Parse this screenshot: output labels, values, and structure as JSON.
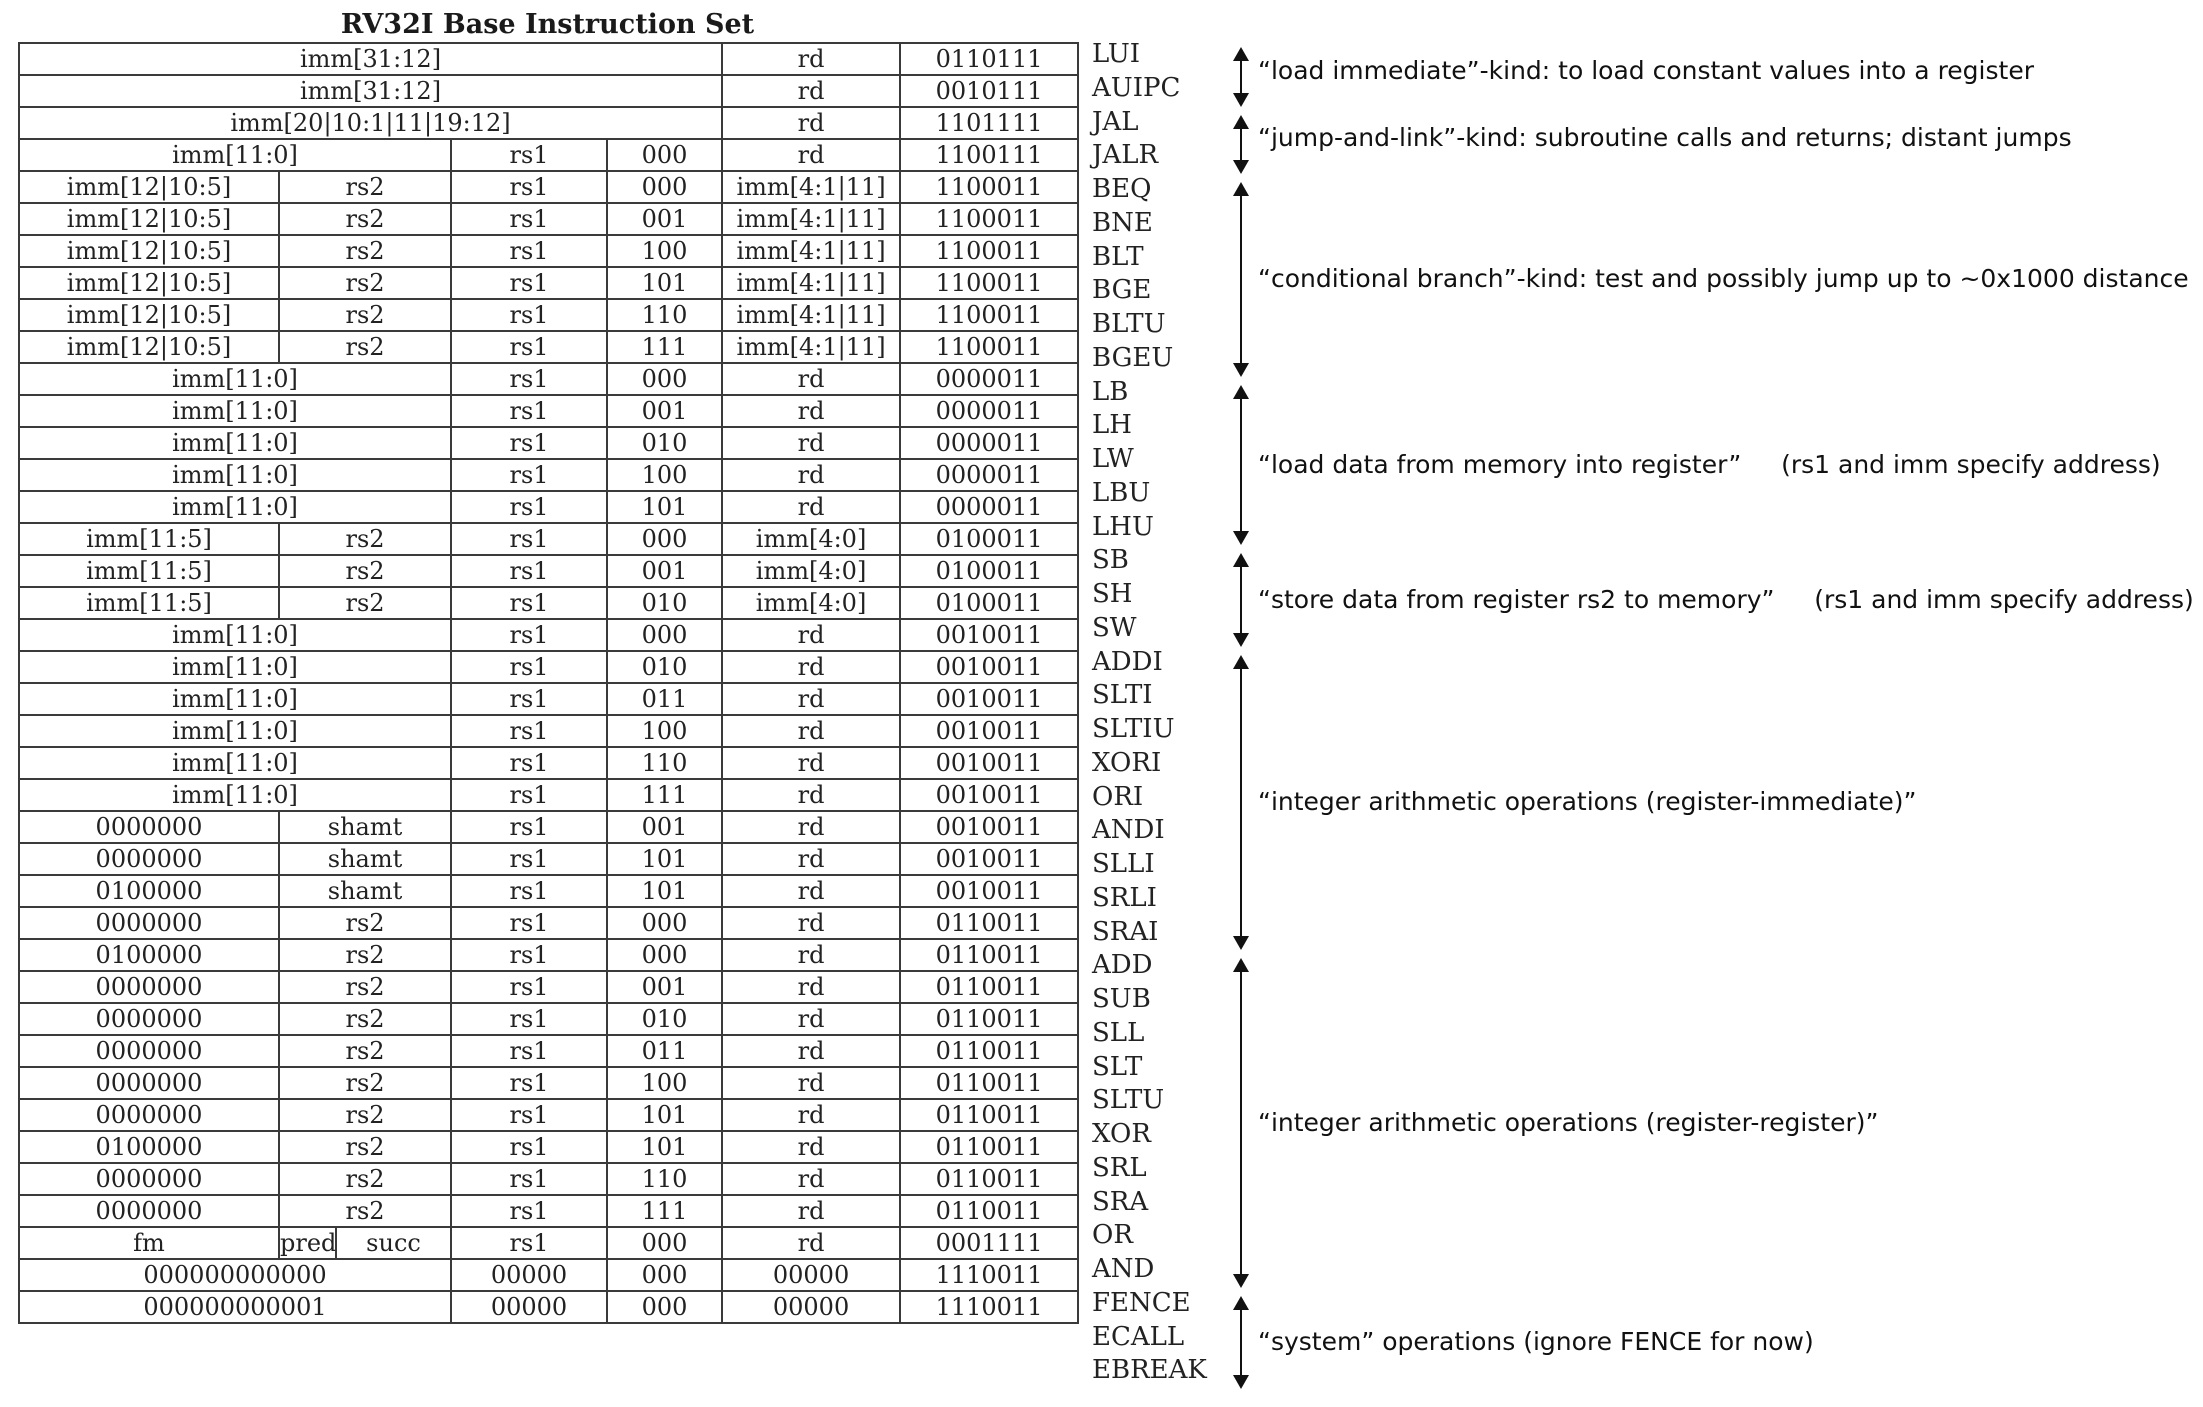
{
  "title": "RV32I Base Instruction Set",
  "rows": [
    {
      "m": "LUI",
      "c": [
        [
          "imm[31:12]",
          5
        ],
        [
          "rd",
          1
        ],
        [
          "0110111",
          1
        ]
      ]
    },
    {
      "m": "AUIPC",
      "c": [
        [
          "imm[31:12]",
          5
        ],
        [
          "rd",
          1
        ],
        [
          "0010111",
          1
        ]
      ]
    },
    {
      "m": "JAL",
      "c": [
        [
          "imm[20|10:1|11|19:12]",
          5
        ],
        [
          "rd",
          1
        ],
        [
          "1101111",
          1
        ]
      ]
    },
    {
      "m": "JALR",
      "c": [
        [
          "imm[11:0]",
          3
        ],
        [
          "rs1",
          1
        ],
        [
          "000",
          1
        ],
        [
          "rd",
          1
        ],
        [
          "1100111",
          1
        ]
      ]
    },
    {
      "m": "BEQ",
      "c": [
        [
          "imm[12|10:5]",
          1
        ],
        [
          "rs2",
          2
        ],
        [
          "rs1",
          1
        ],
        [
          "000",
          1
        ],
        [
          "imm[4:1|11]",
          1
        ],
        [
          "1100011",
          1
        ]
      ]
    },
    {
      "m": "BNE",
      "c": [
        [
          "imm[12|10:5]",
          1
        ],
        [
          "rs2",
          2
        ],
        [
          "rs1",
          1
        ],
        [
          "001",
          1
        ],
        [
          "imm[4:1|11]",
          1
        ],
        [
          "1100011",
          1
        ]
      ]
    },
    {
      "m": "BLT",
      "c": [
        [
          "imm[12|10:5]",
          1
        ],
        [
          "rs2",
          2
        ],
        [
          "rs1",
          1
        ],
        [
          "100",
          1
        ],
        [
          "imm[4:1|11]",
          1
        ],
        [
          "1100011",
          1
        ]
      ]
    },
    {
      "m": "BGE",
      "c": [
        [
          "imm[12|10:5]",
          1
        ],
        [
          "rs2",
          2
        ],
        [
          "rs1",
          1
        ],
        [
          "101",
          1
        ],
        [
          "imm[4:1|11]",
          1
        ],
        [
          "1100011",
          1
        ]
      ]
    },
    {
      "m": "BLTU",
      "c": [
        [
          "imm[12|10:5]",
          1
        ],
        [
          "rs2",
          2
        ],
        [
          "rs1",
          1
        ],
        [
          "110",
          1
        ],
        [
          "imm[4:1|11]",
          1
        ],
        [
          "1100011",
          1
        ]
      ]
    },
    {
      "m": "BGEU",
      "c": [
        [
          "imm[12|10:5]",
          1
        ],
        [
          "rs2",
          2
        ],
        [
          "rs1",
          1
        ],
        [
          "111",
          1
        ],
        [
          "imm[4:1|11]",
          1
        ],
        [
          "1100011",
          1
        ]
      ]
    },
    {
      "m": "LB",
      "c": [
        [
          "imm[11:0]",
          3
        ],
        [
          "rs1",
          1
        ],
        [
          "000",
          1
        ],
        [
          "rd",
          1
        ],
        [
          "0000011",
          1
        ]
      ]
    },
    {
      "m": "LH",
      "c": [
        [
          "imm[11:0]",
          3
        ],
        [
          "rs1",
          1
        ],
        [
          "001",
          1
        ],
        [
          "rd",
          1
        ],
        [
          "0000011",
          1
        ]
      ]
    },
    {
      "m": "LW",
      "c": [
        [
          "imm[11:0]",
          3
        ],
        [
          "rs1",
          1
        ],
        [
          "010",
          1
        ],
        [
          "rd",
          1
        ],
        [
          "0000011",
          1
        ]
      ]
    },
    {
      "m": "LBU",
      "c": [
        [
          "imm[11:0]",
          3
        ],
        [
          "rs1",
          1
        ],
        [
          "100",
          1
        ],
        [
          "rd",
          1
        ],
        [
          "0000011",
          1
        ]
      ]
    },
    {
      "m": "LHU",
      "c": [
        [
          "imm[11:0]",
          3
        ],
        [
          "rs1",
          1
        ],
        [
          "101",
          1
        ],
        [
          "rd",
          1
        ],
        [
          "0000011",
          1
        ]
      ]
    },
    {
      "m": "SB",
      "c": [
        [
          "imm[11:5]",
          1
        ],
        [
          "rs2",
          2
        ],
        [
          "rs1",
          1
        ],
        [
          "000",
          1
        ],
        [
          "imm[4:0]",
          1
        ],
        [
          "0100011",
          1
        ]
      ]
    },
    {
      "m": "SH",
      "c": [
        [
          "imm[11:5]",
          1
        ],
        [
          "rs2",
          2
        ],
        [
          "rs1",
          1
        ],
        [
          "001",
          1
        ],
        [
          "imm[4:0]",
          1
        ],
        [
          "0100011",
          1
        ]
      ]
    },
    {
      "m": "SW",
      "c": [
        [
          "imm[11:5]",
          1
        ],
        [
          "rs2",
          2
        ],
        [
          "rs1",
          1
        ],
        [
          "010",
          1
        ],
        [
          "imm[4:0]",
          1
        ],
        [
          "0100011",
          1
        ]
      ]
    },
    {
      "m": "ADDI",
      "c": [
        [
          "imm[11:0]",
          3
        ],
        [
          "rs1",
          1
        ],
        [
          "000",
          1
        ],
        [
          "rd",
          1
        ],
        [
          "0010011",
          1
        ]
      ]
    },
    {
      "m": "SLTI",
      "c": [
        [
          "imm[11:0]",
          3
        ],
        [
          "rs1",
          1
        ],
        [
          "010",
          1
        ],
        [
          "rd",
          1
        ],
        [
          "0010011",
          1
        ]
      ]
    },
    {
      "m": "SLTIU",
      "c": [
        [
          "imm[11:0]",
          3
        ],
        [
          "rs1",
          1
        ],
        [
          "011",
          1
        ],
        [
          "rd",
          1
        ],
        [
          "0010011",
          1
        ]
      ]
    },
    {
      "m": "XORI",
      "c": [
        [
          "imm[11:0]",
          3
        ],
        [
          "rs1",
          1
        ],
        [
          "100",
          1
        ],
        [
          "rd",
          1
        ],
        [
          "0010011",
          1
        ]
      ]
    },
    {
      "m": "ORI",
      "c": [
        [
          "imm[11:0]",
          3
        ],
        [
          "rs1",
          1
        ],
        [
          "110",
          1
        ],
        [
          "rd",
          1
        ],
        [
          "0010011",
          1
        ]
      ]
    },
    {
      "m": "ANDI",
      "c": [
        [
          "imm[11:0]",
          3
        ],
        [
          "rs1",
          1
        ],
        [
          "111",
          1
        ],
        [
          "rd",
          1
        ],
        [
          "0010011",
          1
        ]
      ]
    },
    {
      "m": "SLLI",
      "c": [
        [
          "0000000",
          1
        ],
        [
          "shamt",
          2
        ],
        [
          "rs1",
          1
        ],
        [
          "001",
          1
        ],
        [
          "rd",
          1
        ],
        [
          "0010011",
          1
        ]
      ]
    },
    {
      "m": "SRLI",
      "c": [
        [
          "0000000",
          1
        ],
        [
          "shamt",
          2
        ],
        [
          "rs1",
          1
        ],
        [
          "101",
          1
        ],
        [
          "rd",
          1
        ],
        [
          "0010011",
          1
        ]
      ]
    },
    {
      "m": "SRAI",
      "c": [
        [
          "0100000",
          1
        ],
        [
          "shamt",
          2
        ],
        [
          "rs1",
          1
        ],
        [
          "101",
          1
        ],
        [
          "rd",
          1
        ],
        [
          "0010011",
          1
        ]
      ]
    },
    {
      "m": "ADD",
      "c": [
        [
          "0000000",
          1
        ],
        [
          "rs2",
          2
        ],
        [
          "rs1",
          1
        ],
        [
          "000",
          1
        ],
        [
          "rd",
          1
        ],
        [
          "0110011",
          1
        ]
      ]
    },
    {
      "m": "SUB",
      "c": [
        [
          "0100000",
          1
        ],
        [
          "rs2",
          2
        ],
        [
          "rs1",
          1
        ],
        [
          "000",
          1
        ],
        [
          "rd",
          1
        ],
        [
          "0110011",
          1
        ]
      ]
    },
    {
      "m": "SLL",
      "c": [
        [
          "0000000",
          1
        ],
        [
          "rs2",
          2
        ],
        [
          "rs1",
          1
        ],
        [
          "001",
          1
        ],
        [
          "rd",
          1
        ],
        [
          "0110011",
          1
        ]
      ]
    },
    {
      "m": "SLT",
      "c": [
        [
          "0000000",
          1
        ],
        [
          "rs2",
          2
        ],
        [
          "rs1",
          1
        ],
        [
          "010",
          1
        ],
        [
          "rd",
          1
        ],
        [
          "0110011",
          1
        ]
      ]
    },
    {
      "m": "SLTU",
      "c": [
        [
          "0000000",
          1
        ],
        [
          "rs2",
          2
        ],
        [
          "rs1",
          1
        ],
        [
          "011",
          1
        ],
        [
          "rd",
          1
        ],
        [
          "0110011",
          1
        ]
      ]
    },
    {
      "m": "XOR",
      "c": [
        [
          "0000000",
          1
        ],
        [
          "rs2",
          2
        ],
        [
          "rs1",
          1
        ],
        [
          "100",
          1
        ],
        [
          "rd",
          1
        ],
        [
          "0110011",
          1
        ]
      ]
    },
    {
      "m": "SRL",
      "c": [
        [
          "0000000",
          1
        ],
        [
          "rs2",
          2
        ],
        [
          "rs1",
          1
        ],
        [
          "101",
          1
        ],
        [
          "rd",
          1
        ],
        [
          "0110011",
          1
        ]
      ]
    },
    {
      "m": "SRA",
      "c": [
        [
          "0100000",
          1
        ],
        [
          "rs2",
          2
        ],
        [
          "rs1",
          1
        ],
        [
          "101",
          1
        ],
        [
          "rd",
          1
        ],
        [
          "0110011",
          1
        ]
      ]
    },
    {
      "m": "OR",
      "c": [
        [
          "0000000",
          1
        ],
        [
          "rs2",
          2
        ],
        [
          "rs1",
          1
        ],
        [
          "110",
          1
        ],
        [
          "rd",
          1
        ],
        [
          "0110011",
          1
        ]
      ]
    },
    {
      "m": "AND",
      "c": [
        [
          "0000000",
          1
        ],
        [
          "rs2",
          2
        ],
        [
          "rs1",
          1
        ],
        [
          "111",
          1
        ],
        [
          "rd",
          1
        ],
        [
          "0110011",
          1
        ]
      ]
    },
    {
      "m": "FENCE",
      "c": [
        [
          "fm",
          1
        ],
        [
          "pred",
          1
        ],
        [
          "succ",
          1
        ],
        [
          "rs1",
          1
        ],
        [
          "000",
          1
        ],
        [
          "rd",
          1
        ],
        [
          "0001111",
          1
        ]
      ]
    },
    {
      "m": "ECALL",
      "c": [
        [
          "000000000000",
          3
        ],
        [
          "00000",
          1
        ],
        [
          "000",
          1
        ],
        [
          "00000",
          1
        ],
        [
          "1110011",
          1
        ]
      ]
    },
    {
      "m": "EBREAK",
      "c": [
        [
          "000000000001",
          3
        ],
        [
          "00000",
          1
        ],
        [
          "000",
          1
        ],
        [
          "00000",
          1
        ],
        [
          "1110011",
          1
        ]
      ]
    }
  ],
  "groups": [
    {
      "from": 0,
      "to": 1,
      "text": "“load immediate”-kind: to load constant values into a register"
    },
    {
      "from": 2,
      "to": 3,
      "text": "“jump-and-link”-kind: subroutine calls and returns; distant jumps"
    },
    {
      "from": 4,
      "to": 9,
      "text": "“conditional branch”-kind: test and possibly jump up to ~0x1000 distance"
    },
    {
      "from": 10,
      "to": 14,
      "text": "“load data from memory into register”     (rs1 and imm specify address)"
    },
    {
      "from": 15,
      "to": 17,
      "text": "“store data from register rs2 to memory”     (rs1 and imm specify address)"
    },
    {
      "from": 18,
      "to": 26,
      "text": "“integer arithmetic operations (register-immediate)”"
    },
    {
      "from": 27,
      "to": 36,
      "text": "“integer arithmetic operations (register-register)”"
    },
    {
      "from": 37,
      "to": 39,
      "text": "“system” operations (ignore FENCE for now)"
    }
  ]
}
